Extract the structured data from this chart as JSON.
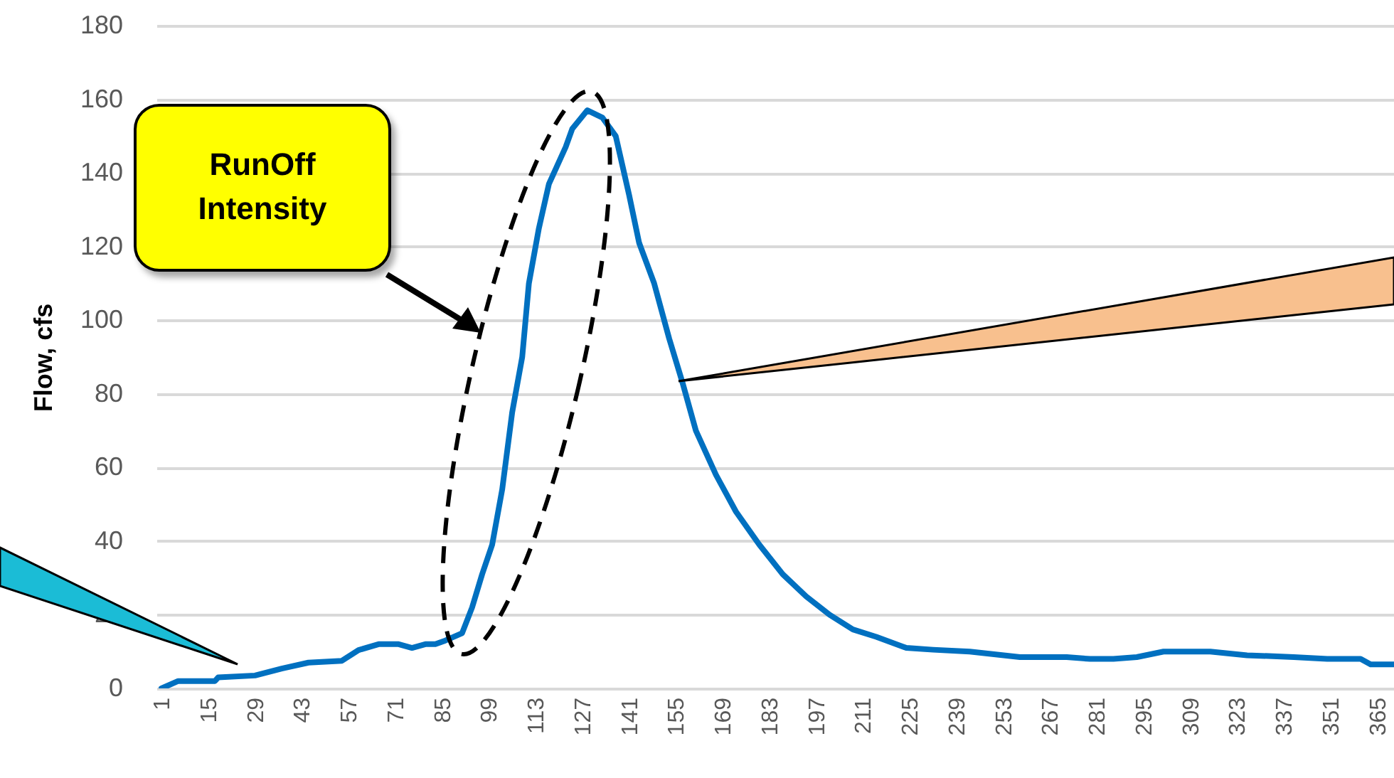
{
  "chart_data": {
    "type": "line",
    "ylabel": "Flow, cfs",
    "annotations": [
      "RunOff Intensity"
    ],
    "x": [
      1,
      6,
      17,
      18,
      29,
      37,
      45,
      55,
      60,
      66,
      72,
      76,
      80,
      83,
      86,
      91,
      94,
      97,
      100,
      103,
      106,
      109,
      111,
      114,
      117,
      122,
      124,
      128.5,
      133,
      137,
      139,
      141,
      144,
      148.5,
      153,
      157,
      161,
      167,
      173,
      180,
      187,
      194,
      201,
      208,
      215,
      224,
      232,
      243,
      258,
      272,
      279,
      286,
      293,
      301,
      315,
      326,
      340,
      350,
      360,
      363,
      370
    ],
    "series": [
      {
        "color": "#0070c0",
        "values": [
          0,
          2,
          2,
          3,
          3.5,
          5.4,
          7,
          7.5,
          10.4,
          12,
          12,
          11,
          12,
          12,
          13,
          15,
          22,
          31,
          39,
          54,
          75,
          90,
          110,
          125,
          137,
          147,
          152,
          157,
          155,
          150,
          142,
          134,
          121,
          110,
          95,
          83,
          70,
          58,
          48,
          39,
          31,
          25,
          20,
          16,
          14,
          11,
          10.5,
          10,
          8.5,
          8.5,
          8,
          8,
          8.5,
          10,
          10,
          9,
          8.5,
          8,
          8,
          6.5,
          6.5
        ]
      }
    ],
    "xlim": [
      -0.5,
      370
    ],
    "xticks": [
      1,
      15,
      29,
      43,
      57,
      71,
      85,
      99,
      113,
      127,
      141,
      155,
      169,
      183,
      197,
      211,
      225,
      239,
      253,
      267,
      281,
      295,
      309,
      323,
      337,
      351,
      365
    ],
    "ylim": [
      0,
      180
    ],
    "yticks": [
      0,
      20,
      40,
      60,
      80,
      100,
      120,
      140,
      160,
      180
    ],
    "grid": "y",
    "marker": "none",
    "line_style": "solid"
  }
}
